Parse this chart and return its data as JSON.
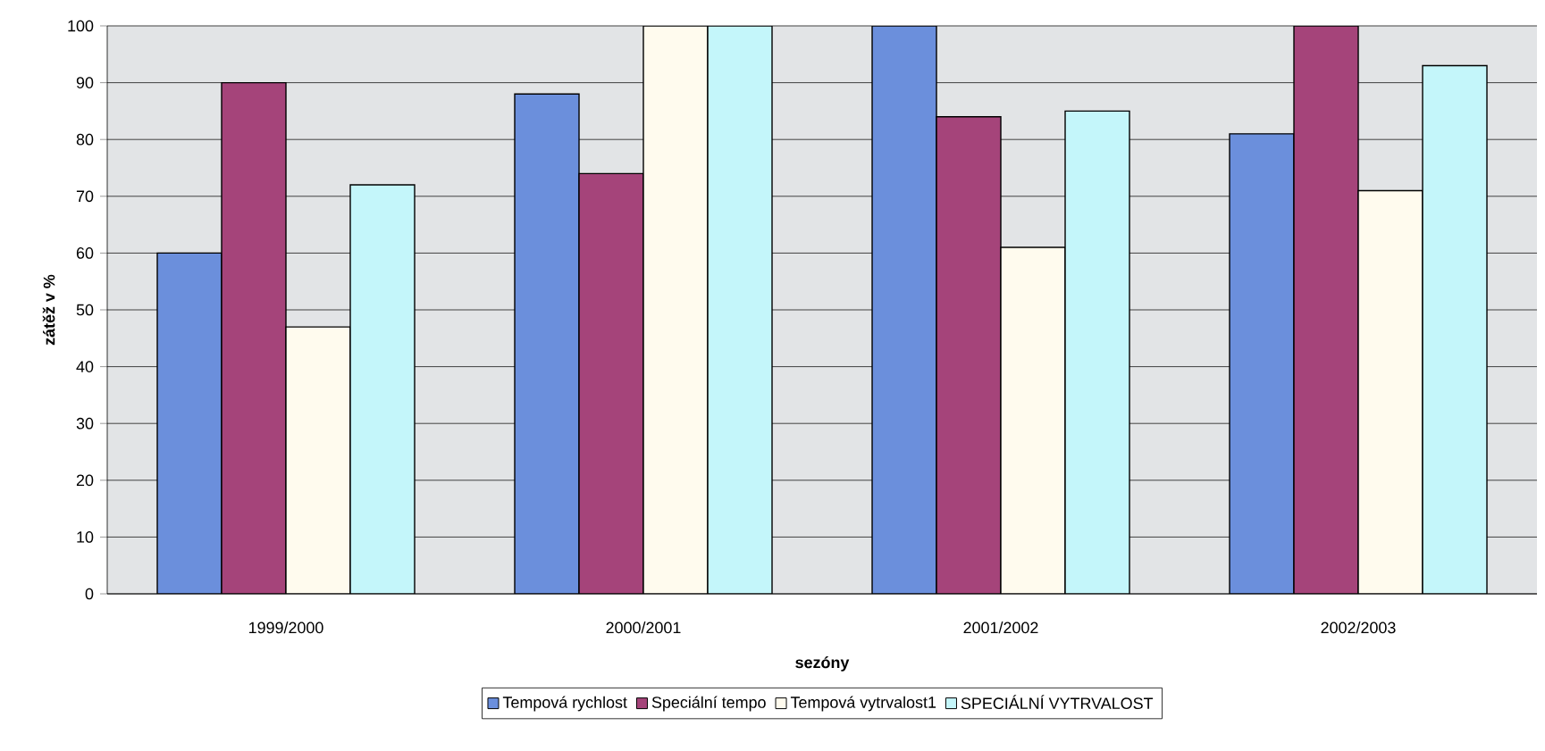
{
  "chart_data": {
    "type": "bar",
    "xlabel": "sezóny",
    "ylabel": "zátěž v %",
    "categories": [
      "1999/2000",
      "2000/2001",
      "2001/2002",
      "2002/2003"
    ],
    "series": [
      {
        "name": "Tempová rychlost",
        "color": "#6b8fdc",
        "values": [
          60,
          88,
          100,
          81
        ]
      },
      {
        "name": "Speciální tempo",
        "color": "#a5447a",
        "values": [
          90,
          74,
          84,
          100
        ]
      },
      {
        "name": "Tempová vytrvalost1",
        "color": "#fffbee",
        "values": [
          47,
          100,
          61,
          71
        ]
      },
      {
        "name": "SPECIÁLNÍ VYTRVALOST",
        "color": "#c4f6fa",
        "values": [
          72,
          100,
          85,
          93
        ]
      }
    ],
    "ylim": [
      0,
      100
    ],
    "yticks": [
      0,
      10,
      20,
      30,
      40,
      50,
      60,
      70,
      80,
      90,
      100
    ],
    "grid": "y",
    "legend": "bottom"
  }
}
